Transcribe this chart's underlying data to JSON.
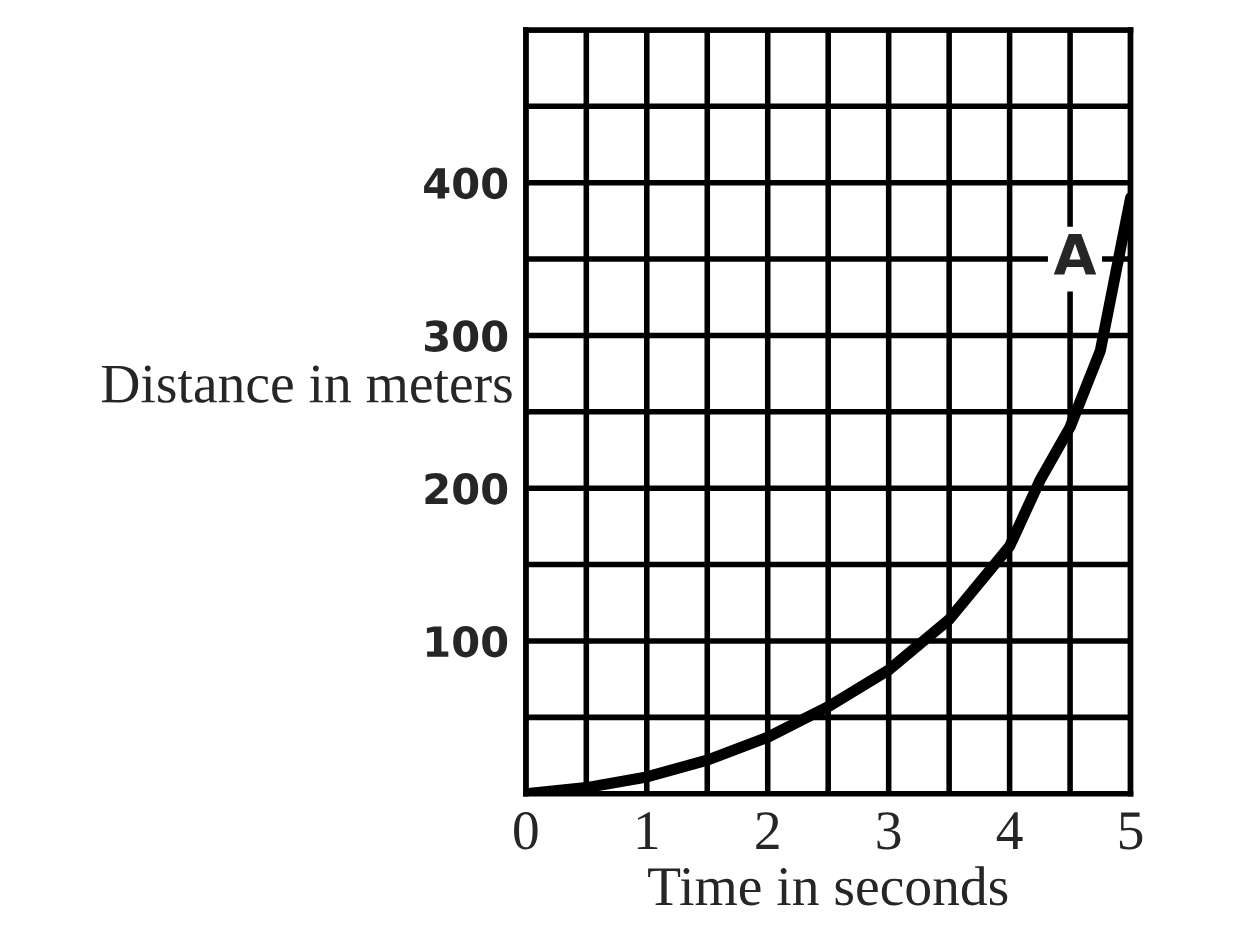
{
  "chart_data": {
    "type": "line",
    "xlabel": "Time in seconds",
    "ylabel": "Distance in meters",
    "xlim": [
      0,
      5
    ],
    "ylim": [
      0,
      500
    ],
    "xticks": [
      0,
      {
        "value": 0.5,
        "label": null
      },
      1,
      {
        "value": 1.5,
        "label": null
      },
      2,
      {
        "value": 2.5,
        "label": null
      },
      3,
      {
        "value": 3.5,
        "label": null
      },
      4,
      {
        "value": 4.5,
        "label": null
      },
      5
    ],
    "yticks": [
      {
        "value": 0,
        "label": null
      },
      {
        "value": 50,
        "label": null
      },
      100,
      {
        "value": 150,
        "label": null
      },
      200,
      {
        "value": 250,
        "label": null
      },
      300,
      {
        "value": 350,
        "label": null
      },
      400,
      {
        "value": 450,
        "label": null
      },
      {
        "value": 500,
        "label": null
      }
    ],
    "grid": true,
    "legend": false,
    "marker": "none",
    "line_style": "solid",
    "series": [
      {
        "name": "A",
        "color": "#000000",
        "x": [
          0,
          0.5,
          1,
          1.5,
          2,
          2.5,
          3,
          3.5,
          4,
          4.25,
          4.5,
          4.75,
          5
        ],
        "values": [
          0,
          4,
          11,
          22,
          37,
          57,
          81,
          114,
          162,
          205,
          240,
          290,
          390
        ]
      }
    ]
  }
}
